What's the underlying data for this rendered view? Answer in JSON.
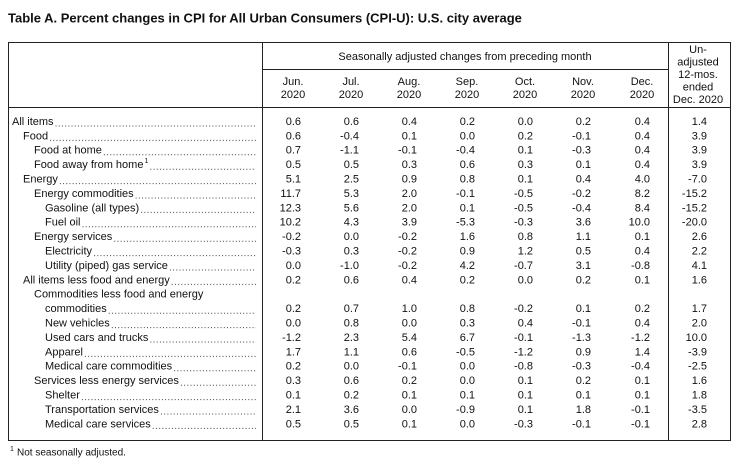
{
  "title": "Table A. Percent changes in CPI for All Urban Consumers (CPI-U): U.S. city average",
  "table": {
    "group_header": "Seasonally adjusted changes from preceding month",
    "columns": [
      [
        "Jun.",
        "2020"
      ],
      [
        "Jul.",
        "2020"
      ],
      [
        "Aug.",
        "2020"
      ],
      [
        "Sep.",
        "2020"
      ],
      [
        "Oct.",
        "2020"
      ],
      [
        "Nov.",
        "2020"
      ],
      [
        "Dec.",
        "2020"
      ],
      [
        "Un-",
        "adjusted",
        "12-mos.",
        "ended",
        "Dec. 2020"
      ]
    ],
    "rows": [
      {
        "label": "All items",
        "values": [
          "0.6",
          "0.6",
          "0.4",
          "0.2",
          "0.0",
          "0.2",
          "0.4",
          "1.4"
        ]
      },
      {
        "label": "Food",
        "values": [
          "0.6",
          "-0.4",
          "0.1",
          "0.0",
          "0.2",
          "-0.1",
          "0.4",
          "3.9"
        ]
      },
      {
        "label": "Food at home",
        "values": [
          "0.7",
          "-1.1",
          "-0.1",
          "-0.4",
          "0.1",
          "-0.3",
          "0.4",
          "3.9"
        ]
      },
      {
        "label": "Food away from home",
        "note": "1",
        "values": [
          "0.5",
          "0.5",
          "0.3",
          "0.6",
          "0.3",
          "0.1",
          "0.4",
          "3.9"
        ]
      },
      {
        "label": "Energy",
        "values": [
          "5.1",
          "2.5",
          "0.9",
          "0.8",
          "0.1",
          "0.4",
          "4.0",
          "-7.0"
        ]
      },
      {
        "label": "Energy commodities",
        "values": [
          "11.7",
          "5.3",
          "2.0",
          "-0.1",
          "-0.5",
          "-0.2",
          "8.2",
          "-15.2"
        ]
      },
      {
        "label": "Gasoline (all types)",
        "values": [
          "12.3",
          "5.6",
          "2.0",
          "0.1",
          "-0.5",
          "-0.4",
          "8.4",
          "-15.2"
        ]
      },
      {
        "label": "Fuel oil",
        "values": [
          "10.2",
          "4.3",
          "3.9",
          "-5.3",
          "-0.3",
          "3.6",
          "10.0",
          "-20.0"
        ]
      },
      {
        "label": "Energy services",
        "values": [
          "-0.2",
          "0.0",
          "-0.2",
          "1.6",
          "0.8",
          "1.1",
          "0.1",
          "2.6"
        ]
      },
      {
        "label": "Electricity",
        "values": [
          "-0.3",
          "0.3",
          "-0.2",
          "0.9",
          "1.2",
          "0.5",
          "0.4",
          "2.2"
        ]
      },
      {
        "label": "Utility (piped) gas service",
        "values": [
          "0.0",
          "-1.0",
          "-0.2",
          "4.2",
          "-0.7",
          "3.1",
          "-0.8",
          "4.1"
        ]
      },
      {
        "label": "All items less food and energy",
        "values": [
          "0.2",
          "0.6",
          "0.4",
          "0.2",
          "0.0",
          "0.2",
          "0.1",
          "1.6"
        ]
      },
      {
        "label": "Commodities less food and energy"
      },
      {
        "label": "commodities",
        "values": [
          "0.2",
          "0.7",
          "1.0",
          "0.8",
          "-0.2",
          "0.1",
          "0.2",
          "1.7"
        ]
      },
      {
        "label": "New vehicles",
        "values": [
          "0.0",
          "0.8",
          "0.0",
          "0.3",
          "0.4",
          "-0.1",
          "0.4",
          "2.0"
        ]
      },
      {
        "label": "Used cars and trucks",
        "values": [
          "-1.2",
          "2.3",
          "5.4",
          "6.7",
          "-0.1",
          "-1.3",
          "-1.2",
          "10.0"
        ]
      },
      {
        "label": "Apparel",
        "values": [
          "1.7",
          "1.1",
          "0.6",
          "-0.5",
          "-1.2",
          "0.9",
          "1.4",
          "-3.9"
        ]
      },
      {
        "label": "Medical care commodities",
        "values": [
          "0.2",
          "0.0",
          "-0.1",
          "0.0",
          "-0.8",
          "-0.3",
          "-0.4",
          "-2.5"
        ]
      },
      {
        "label": "Services less energy services",
        "values": [
          "0.3",
          "0.6",
          "0.2",
          "0.0",
          "0.1",
          "0.2",
          "0.1",
          "1.6"
        ]
      },
      {
        "label": "Shelter",
        "values": [
          "0.1",
          "0.2",
          "0.1",
          "0.1",
          "0.1",
          "0.1",
          "0.1",
          "1.8"
        ]
      },
      {
        "label": "Transportation services",
        "values": [
          "2.1",
          "3.6",
          "0.0",
          "-0.9",
          "0.1",
          "1.8",
          "-0.1",
          "-3.5"
        ]
      },
      {
        "label": "Medical care services",
        "values": [
          "0.5",
          "0.5",
          "0.1",
          "0.0",
          "-0.3",
          "-0.1",
          "-0.1",
          "2.8"
        ]
      }
    ]
  },
  "footnote": {
    "mark": "1",
    "text": "Not seasonally adjusted."
  }
}
